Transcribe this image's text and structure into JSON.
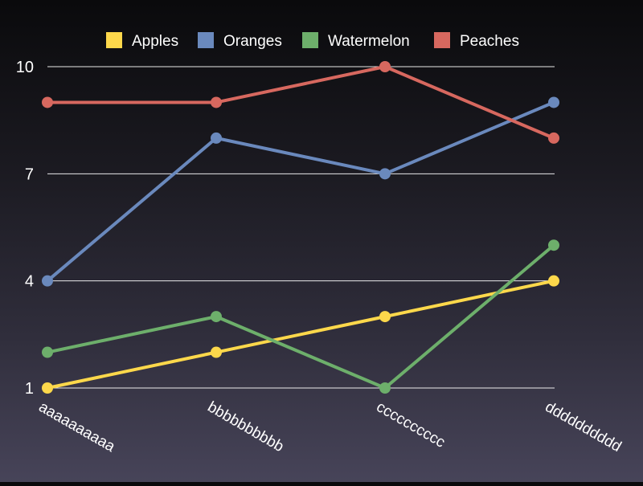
{
  "chart_data": {
    "type": "line",
    "title": "",
    "xlabel": "",
    "ylabel": "",
    "categories": [
      "aaaaaaaaaa",
      "bbbbbbbbbb",
      "cccccccccc",
      "dddddddddd"
    ],
    "yticks": [
      1,
      4,
      7,
      10
    ],
    "ylim": [
      1,
      10
    ],
    "grid": true,
    "legend_position": "top",
    "series": [
      {
        "name": "Apples",
        "color": "#fdd84b",
        "values": [
          1,
          2,
          3,
          4
        ]
      },
      {
        "name": "Oranges",
        "color": "#6a89bd",
        "values": [
          4,
          8,
          7,
          9
        ]
      },
      {
        "name": "Watermelon",
        "color": "#6daf6b",
        "values": [
          2,
          3,
          1,
          5
        ]
      },
      {
        "name": "Peaches",
        "color": "#d7685f",
        "values": [
          9,
          9,
          10,
          8
        ]
      }
    ]
  }
}
